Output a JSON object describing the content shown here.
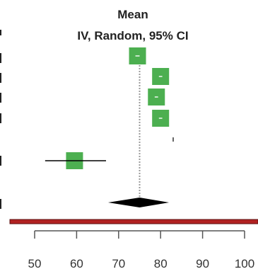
{
  "chart_data": {
    "type": "forest",
    "title": "Mean",
    "subtitle": "IV, Random, 95% CI",
    "xlim": [
      45,
      105
    ],
    "xticks": [
      50,
      60,
      70,
      80,
      90,
      100
    ],
    "tick_labels": [
      "50",
      "60",
      "70",
      "80",
      "90",
      "100"
    ],
    "reference_line": 75,
    "studies": [
      {
        "mean": 74.5,
        "ci": [
          74.0,
          75.0
        ],
        "weight": 1.0
      },
      {
        "mean": 80.0,
        "ci": [
          79.6,
          80.4
        ],
        "weight": 1.0
      },
      {
        "mean": 79.0,
        "ci": [
          78.6,
          79.4
        ],
        "weight": 1.0
      },
      {
        "mean": 80.0,
        "ci": [
          79.6,
          80.4
        ],
        "weight": 1.0
      },
      {
        "mean": 83.0,
        "ci": [
          82.9,
          83.1
        ],
        "weight": 0.1
      },
      {
        "mean": 59.5,
        "ci": [
          52.5,
          67.0
        ],
        "weight": 1.0
      }
    ],
    "pooled": {
      "mean": 75.0,
      "ci": [
        67.5,
        82.0
      ]
    },
    "colors": {
      "box": "#4caf50",
      "ci_line": "#000000",
      "reference": "#999999",
      "diamond": "#000000",
      "bar": "#b22222",
      "axis": "#555555"
    }
  }
}
